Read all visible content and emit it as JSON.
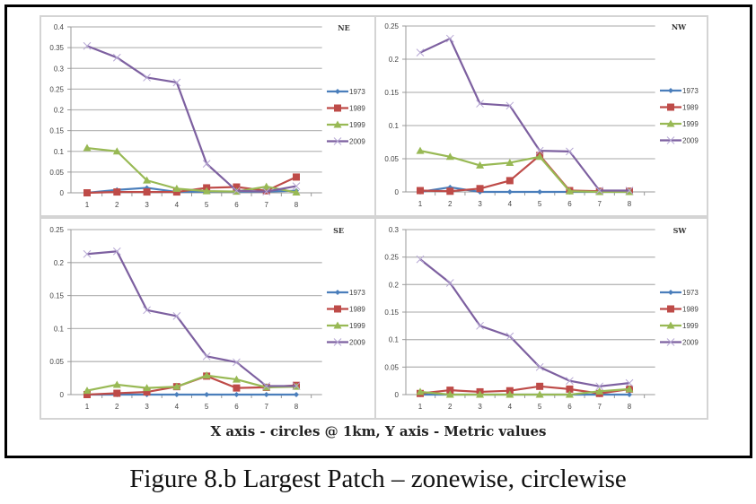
{
  "figure": {
    "axis_caption": "X axis - circles @ 1km, Y axis - Metric values",
    "caption": "Figure 8.b  Largest Patch – zonewise, circlewise"
  },
  "series_style": {
    "1973": {
      "color": "#4a7ebb",
      "marker": "diamond"
    },
    "1989": {
      "color": "#be4b48",
      "marker": "square"
    },
    "1999": {
      "color": "#98b954",
      "marker": "triangle"
    },
    "2009": {
      "color": "#7d60a0",
      "marker": "x"
    }
  },
  "chart_data": [
    {
      "type": "line",
      "title": "NE",
      "xlabel": "",
      "ylabel": "",
      "categories": [
        "1",
        "2",
        "3",
        "4",
        "5",
        "6",
        "7",
        "8"
      ],
      "ylim": [
        0,
        0.4
      ],
      "yticks": [
        "0",
        "0.05",
        "0.1",
        "0.15",
        "0.2",
        "0.25",
        "0.3",
        "0.35",
        "0.4"
      ],
      "grid": true,
      "legend": "right",
      "series": [
        {
          "name": "1973",
          "values": [
            0,
            0.007,
            0.012,
            0.002,
            0.003,
            0.003,
            0.003,
            0.005
          ]
        },
        {
          "name": "1989",
          "values": [
            0,
            0.002,
            0.002,
            0.002,
            0.012,
            0.014,
            0.005,
            0.038
          ]
        },
        {
          "name": "1999",
          "values": [
            0.108,
            0.1,
            0.03,
            0.01,
            0.004,
            0.003,
            0.015,
            0.001
          ]
        },
        {
          "name": "2009",
          "values": [
            0.354,
            0.326,
            0.278,
            0.266,
            0.07,
            0.005,
            0.003,
            0.016
          ]
        }
      ]
    },
    {
      "type": "line",
      "title": "NW",
      "xlabel": "",
      "ylabel": "",
      "categories": [
        "1",
        "2",
        "3",
        "4",
        "5",
        "6",
        "7",
        "8"
      ],
      "ylim": [
        0,
        0.25
      ],
      "yticks": [
        "0",
        "0.05",
        "0.1",
        "0.15",
        "0.2",
        "0.25"
      ],
      "grid": true,
      "legend": "right",
      "series": [
        {
          "name": "1973",
          "values": [
            0,
            0.007,
            0,
            0,
            0,
            0,
            0,
            0
          ]
        },
        {
          "name": "1989",
          "values": [
            0.002,
            0.001,
            0.005,
            0.017,
            0.055,
            0.002,
            0.001,
            0.001
          ]
        },
        {
          "name": "1999",
          "values": [
            0.062,
            0.053,
            0.04,
            0.044,
            0.053,
            0.001,
            0,
            0
          ]
        },
        {
          "name": "2009",
          "values": [
            0.21,
            0.231,
            0.133,
            0.13,
            0.062,
            0.061,
            0.002,
            0.002
          ]
        }
      ]
    },
    {
      "type": "line",
      "title": "SE",
      "xlabel": "",
      "ylabel": "",
      "categories": [
        "1",
        "2",
        "3",
        "4",
        "5",
        "6",
        "7",
        "8"
      ],
      "ylim": [
        0,
        0.25
      ],
      "yticks": [
        "0",
        "0.05",
        "0.1",
        "0.15",
        "0.2",
        "0.25"
      ],
      "grid": true,
      "legend": "right",
      "series": [
        {
          "name": "1973",
          "values": [
            0,
            0,
            0,
            0,
            0,
            0,
            0,
            0
          ]
        },
        {
          "name": "1989",
          "values": [
            0,
            0.002,
            0.004,
            0.012,
            0.028,
            0.01,
            0.011,
            0.014
          ]
        },
        {
          "name": "1999",
          "values": [
            0.006,
            0.015,
            0.01,
            0.012,
            0.029,
            0.023,
            0.011,
            0.012
          ]
        },
        {
          "name": "2009",
          "values": [
            0.213,
            0.217,
            0.128,
            0.119,
            0.058,
            0.049,
            0.013,
            0.013
          ]
        }
      ]
    },
    {
      "type": "line",
      "title": "SW",
      "xlabel": "",
      "ylabel": "",
      "categories": [
        "1",
        "2",
        "3",
        "4",
        "5",
        "6",
        "7",
        "8"
      ],
      "ylim": [
        0,
        0.3
      ],
      "yticks": [
        "0",
        "0.05",
        "0.1",
        "0.15",
        "0.2",
        "0.25",
        "0.3"
      ],
      "grid": true,
      "legend": "right",
      "series": [
        {
          "name": "1973",
          "values": [
            0,
            0,
            0,
            0,
            0,
            0,
            0,
            0
          ]
        },
        {
          "name": "1989",
          "values": [
            0.002,
            0.008,
            0.005,
            0.007,
            0.015,
            0.01,
            0.002,
            0.01
          ]
        },
        {
          "name": "1999",
          "values": [
            0.005,
            0,
            0,
            0,
            0,
            0,
            0.006,
            0.01
          ]
        },
        {
          "name": "2009",
          "values": [
            0.246,
            0.203,
            0.125,
            0.106,
            0.05,
            0.025,
            0.015,
            0.021
          ]
        }
      ]
    }
  ]
}
